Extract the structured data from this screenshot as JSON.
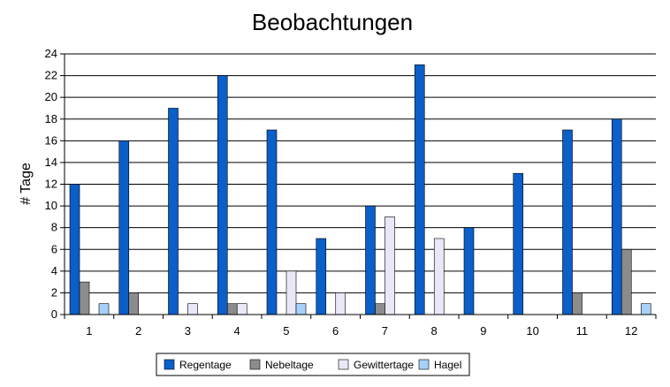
{
  "chart_data": {
    "type": "bar",
    "title": "Beobachtungen",
    "xlabel": "",
    "ylabel": "# Tage",
    "categories": [
      "1",
      "2",
      "3",
      "4",
      "5",
      "6",
      "7",
      "8",
      "9",
      "10",
      "11",
      "12"
    ],
    "series": [
      {
        "name": "Regentage",
        "color": "#0a5fc8",
        "values": [
          12,
          16,
          19,
          22,
          17,
          7,
          10,
          23,
          8,
          13,
          17,
          18
        ]
      },
      {
        "name": "Nebeltage",
        "color": "#8c8c8c",
        "values": [
          3,
          2,
          0,
          1,
          0,
          0,
          1,
          0,
          0,
          0,
          2,
          6
        ]
      },
      {
        "name": "Gewittertage",
        "color": "#e8e8f8",
        "values": [
          0,
          0,
          1,
          1,
          4,
          2,
          9,
          7,
          0,
          0,
          0,
          0
        ]
      },
      {
        "name": "Hagel",
        "color": "#a8d0f8",
        "values": [
          1,
          0,
          0,
          0,
          1,
          0,
          0,
          0,
          0,
          0,
          0,
          1
        ]
      }
    ],
    "ylim": [
      0,
      24
    ],
    "yticks": [
      0,
      2,
      4,
      6,
      8,
      10,
      12,
      14,
      16,
      18,
      20,
      22,
      24
    ],
    "grid": true,
    "legend_position": "bottom"
  }
}
